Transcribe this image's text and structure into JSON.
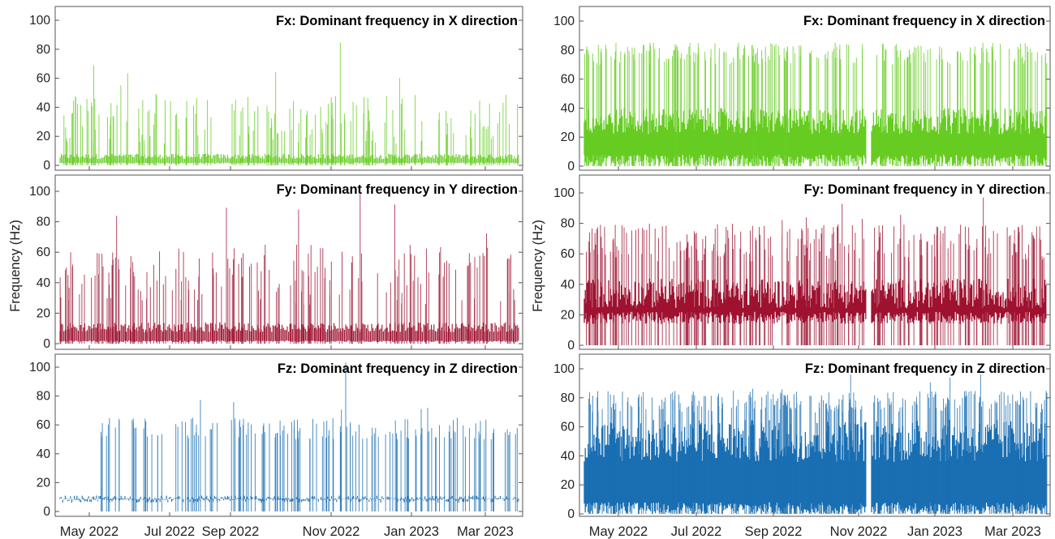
{
  "ylabel": "Frequency (Hz)",
  "y_ticks": [
    0,
    20,
    40,
    60,
    80,
    100
  ],
  "x_ticks": [
    "May 2022",
    "Jul 2022",
    "Sep 2022",
    "Nov 2022",
    "Jan 2023",
    "Mar 2023"
  ],
  "colors": {
    "fx": "#66cc22",
    "fy": "#9e1230",
    "fz": "#1a6fb3",
    "axis": "#555555",
    "text": "#000000"
  },
  "chart_data": [
    {
      "type": "bar",
      "panel": "left-top",
      "title": "Fx: Dominant frequency in X direction",
      "x": [
        "2022-04-01",
        "2023-03-31"
      ],
      "ylim": [
        0,
        110
      ],
      "series": [
        {
          "baseline_hz": [
            1,
            8
          ],
          "spikes_hz": [
            15,
            50
          ],
          "max_hz": 86,
          "color": "#66cc22"
        }
      ]
    },
    {
      "type": "bar",
      "panel": "left-middle",
      "title": "Fy: Dominant frequency in Y direction",
      "x": [
        "2022-04-01",
        "2023-03-31"
      ],
      "ylim": [
        0,
        105
      ],
      "ylabel": "Frequency (Hz)",
      "series": [
        {
          "baseline_hz": [
            1,
            14
          ],
          "spikes_hz": [
            25,
            65
          ],
          "max_hz": 100,
          "color": "#9e1230"
        }
      ]
    },
    {
      "type": "bar",
      "panel": "left-bottom",
      "title": "Fz: Dominant frequency in Z direction",
      "x": [
        "2022-04-01",
        "2023-03-31"
      ],
      "ylim": [
        0,
        110
      ],
      "series": [
        {
          "baseline_hz": [
            8,
            11
          ],
          "spikes_hz": [
            50,
            65
          ],
          "max_hz": 110,
          "color": "#1a6fb3"
        }
      ]
    },
    {
      "type": "bar",
      "panel": "right-top",
      "title": "Fx: Dominant frequency in X direction",
      "x": [
        "2022-04-01",
        "2023-03-31"
      ],
      "ylim": [
        0,
        110
      ],
      "series": [
        {
          "baseline_hz": [
            0,
            40
          ],
          "spikes_hz": [
            70,
            85
          ],
          "max_hz": 85,
          "color": "#66cc22"
        }
      ]
    },
    {
      "type": "bar",
      "panel": "right-middle",
      "title": "Fy: Dominant frequency in Y direction",
      "x": [
        "2022-04-01",
        "2023-03-31"
      ],
      "ylim": [
        0,
        105
      ],
      "ylabel": "Frequency (Hz)",
      "series": [
        {
          "baseline_hz": [
            14,
            44
          ],
          "spikes_hz": [
            55,
            80
          ],
          "max_hz": 98,
          "color": "#9e1230"
        }
      ]
    },
    {
      "type": "bar",
      "panel": "right-bottom",
      "title": "Fz: Dominant frequency in Z direction",
      "x": [
        "2022-04-01",
        "2023-03-31"
      ],
      "ylim": [
        0,
        110
      ],
      "series": [
        {
          "baseline_hz": [
            0,
            65
          ],
          "spikes_hz": [
            70,
            85
          ],
          "max_hz": 99,
          "color": "#1a6fb3"
        }
      ]
    }
  ]
}
